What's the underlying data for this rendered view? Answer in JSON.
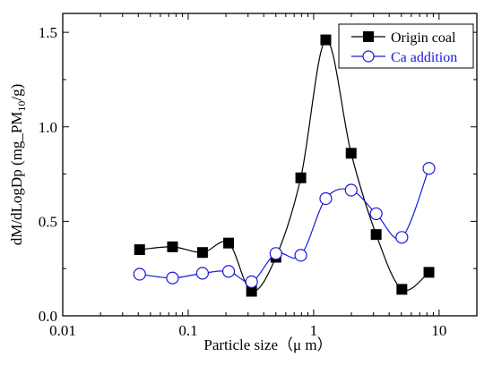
{
  "chart_data": {
    "type": "line",
    "xscale": "log",
    "xlabel": "Particle size（μ m）",
    "ylabel_main": "dM/dLogDp (mg_PM",
    "ylabel_sub": "10",
    "ylabel_end": "/g)",
    "xlim": [
      0.01,
      20
    ],
    "ylim": [
      0.0,
      1.6
    ],
    "xticks": [
      0.01,
      0.1,
      1,
      10
    ],
    "xtick_labels": [
      "0.01",
      "0.1",
      "1",
      "10"
    ],
    "yticks": [
      0.0,
      0.5,
      1.0,
      1.5
    ],
    "ytick_labels": [
      "0.0",
      "0.5",
      "1.0",
      "1.5"
    ],
    "grid": false,
    "legend_position": "top-right",
    "series": [
      {
        "name": "Origin coal",
        "color": "#000000",
        "marker": "filled-square",
        "x": [
          0.041,
          0.075,
          0.13,
          0.21,
          0.32,
          0.5,
          0.79,
          1.25,
          1.99,
          3.15,
          5.05,
          8.3
        ],
        "y": [
          0.35,
          0.365,
          0.335,
          0.385,
          0.13,
          0.31,
          0.73,
          1.46,
          0.86,
          0.43,
          0.14,
          0.23
        ]
      },
      {
        "name": "Ca addition",
        "color": "#1a1adb",
        "marker": "open-circle",
        "x": [
          0.041,
          0.075,
          0.13,
          0.21,
          0.32,
          0.5,
          0.79,
          1.25,
          1.99,
          3.15,
          5.05,
          8.3
        ],
        "y": [
          0.22,
          0.2,
          0.225,
          0.235,
          0.18,
          0.33,
          0.32,
          0.62,
          0.665,
          0.54,
          0.415,
          0.78
        ]
      }
    ]
  }
}
